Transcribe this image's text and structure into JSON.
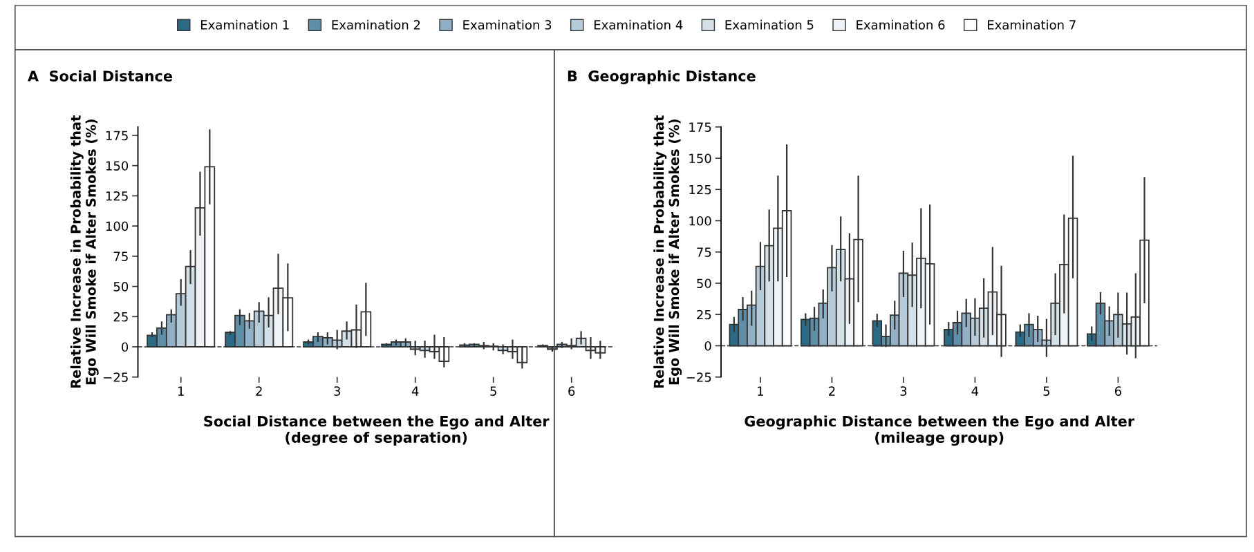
{
  "chart_data": [
    {
      "type": "bar",
      "title": "A  Social Distance",
      "xlabel": "Social Distance between the Ego and Alter\n(degree of separation)",
      "ylabel": "Relative Increase in Probability that\nEgo Will Smoke if Alter Smokes (%)",
      "categories": [
        "1",
        "2",
        "3",
        "4",
        "5",
        "6"
      ],
      "ylim": [
        -25,
        182
      ],
      "yticks": [
        {
          "value": -25,
          "label": "−25"
        },
        0,
        25,
        50,
        75,
        100,
        125,
        150,
        175
      ],
      "legend": "top",
      "grid": false,
      "ref_lines": [
        {
          "axis": "y",
          "value": 0,
          "line_style": "dashed",
          "color": "#333333"
        }
      ],
      "series": [
        {
          "name": "Examination 1",
          "color": "#2b6a84",
          "values": [
            9.5,
            12,
            4,
            2,
            1.5,
            1
          ],
          "errors": [
            [
              8,
              12
            ],
            [
              10,
              13
            ],
            [
              2,
              6
            ],
            [
              0,
              3
            ],
            [
              0,
              3
            ],
            [
              0,
              2
            ]
          ]
        },
        {
          "name": "Examination 2",
          "color": "#5f8fa8",
          "values": [
            15.5,
            26,
            8.5,
            4,
            2,
            -2
          ],
          "errors": [
            [
              10,
              21
            ],
            [
              18,
              31
            ],
            [
              4,
              12
            ],
            [
              1,
              6
            ],
            [
              0,
              3
            ],
            [
              -4,
              0
            ]
          ]
        },
        {
          "name": "Examination 3",
          "color": "#8fb0c6",
          "values": [
            26.5,
            21.5,
            7.5,
            4,
            1,
            2
          ],
          "errors": [
            [
              20,
              31
            ],
            [
              15,
              28
            ],
            [
              2,
              12
            ],
            [
              0,
              7
            ],
            [
              -2,
              4
            ],
            [
              -1,
              4
            ]
          ]
        },
        {
          "name": "Examination 4",
          "color": "#b6ccda",
          "values": [
            44,
            29.5,
            5.5,
            -2,
            0.5,
            1
          ],
          "errors": [
            [
              34,
              56
            ],
            [
              20,
              37
            ],
            [
              -2,
              14
            ],
            [
              -7,
              5
            ],
            [
              -3,
              3
            ],
            [
              -2,
              7
            ]
          ]
        },
        {
          "name": "Examination 5",
          "color": "#d3e0e8",
          "values": [
            66.5,
            26,
            13,
            -3,
            -3,
            7
          ],
          "errors": [
            [
              52,
              80
            ],
            [
              16,
              41
            ],
            [
              6,
              21
            ],
            [
              -9,
              5
            ],
            [
              -6,
              2
            ],
            [
              2,
              13
            ]
          ]
        },
        {
          "name": "Examination 6",
          "color": "#eef3f7",
          "values": [
            115,
            48.5,
            14,
            -4,
            -4,
            -3
          ],
          "errors": [
            [
              92,
              145
            ],
            [
              27,
              77
            ],
            [
              -1,
              35
            ],
            [
              -10,
              10
            ],
            [
              -10,
              6
            ],
            [
              -10,
              8
            ]
          ]
        },
        {
          "name": "Examination 7",
          "color": "#ffffff",
          "values": [
            149,
            40.5,
            29,
            -12,
            -13,
            -5
          ],
          "errors": [
            [
              118,
              180
            ],
            [
              13,
              69
            ],
            [
              9,
              53
            ],
            [
              -17,
              8
            ],
            [
              -18,
              0
            ],
            [
              -10,
              5
            ]
          ]
        }
      ]
    },
    {
      "type": "bar",
      "title": "B  Geographic Distance",
      "xlabel": "Geographic Distance between the Ego and Alter\n(mileage group)",
      "ylabel": "Relative Increase in Probability that\nEgo Will Smoke if Alter Smokes (%)",
      "categories": [
        "1",
        "2",
        "3",
        "4",
        "5",
        "6"
      ],
      "ylim": [
        -25,
        175
      ],
      "yticks": [
        {
          "value": -25,
          "label": "−25"
        },
        0,
        25,
        50,
        75,
        100,
        125,
        150,
        175
      ],
      "grid": false,
      "ref_lines": [
        {
          "axis": "y",
          "value": 0,
          "line_style": "dashed",
          "color": "#333333"
        }
      ],
      "series": [
        {
          "color": "#2b6a84",
          "values": [
            17,
            21,
            20,
            13,
            11,
            9.5
          ],
          "errors": [
            [
              11,
              23
            ],
            [
              16,
              26
            ],
            [
              15,
              25.5
            ],
            [
              8,
              19
            ],
            [
              7,
              17
            ],
            [
              4,
              15.5
            ]
          ]
        },
        {
          "color": "#5f8fa8",
          "values": [
            29,
            22,
            7.5,
            18.5,
            17,
            34
          ],
          "errors": [
            [
              20,
              39
            ],
            [
              12,
              31
            ],
            [
              -1,
              17
            ],
            [
              9,
              28
            ],
            [
              7,
              26
            ],
            [
              25,
              43
            ]
          ]
        },
        {
          "color": "#8fb0c6",
          "values": [
            32.5,
            34,
            24.5,
            26,
            13,
            20
          ],
          "errors": [
            [
              16,
              44
            ],
            [
              22,
              45
            ],
            [
              13,
              36
            ],
            [
              15,
              37.5
            ],
            [
              3,
              24
            ],
            [
              8,
              31.5
            ]
          ]
        },
        {
          "color": "#b6ccda",
          "values": [
            63.5,
            62.5,
            58,
            22,
            4.5,
            25
          ],
          "errors": [
            [
              44.5,
              83
            ],
            [
              43.5,
              80.5
            ],
            [
              39,
              76
            ],
            [
              8,
              38
            ],
            [
              -9,
              21.5
            ],
            [
              6.5,
              42.5
            ]
          ]
        },
        {
          "color": "#d3e0e8",
          "values": [
            80,
            77,
            56.5,
            30,
            34,
            17.5
          ],
          "errors": [
            [
              51.5,
              109
            ],
            [
              51.5,
              103.5
            ],
            [
              31,
              82.5
            ],
            [
              6.5,
              54
            ],
            [
              8.5,
              58
            ],
            [
              -7,
              42.5
            ]
          ]
        },
        {
          "color": "#eef3f7",
          "values": [
            94,
            53.5,
            70,
            43,
            65,
            23
          ],
          "errors": [
            [
              51.5,
              136
            ],
            [
              17.5,
              90
            ],
            [
              30,
              110
            ],
            [
              8.5,
              79
            ],
            [
              26,
              105
            ],
            [
              -10,
              58
            ]
          ]
        },
        {
          "color": "#ffffff",
          "values": [
            108,
            85,
            65.5,
            25,
            102,
            84.5
          ],
          "errors": [
            [
              55,
              161
            ],
            [
              35,
              136
            ],
            [
              17,
              113
            ],
            [
              -9,
              64
            ],
            [
              54,
              152
            ],
            [
              34,
              135
            ]
          ]
        }
      ]
    }
  ]
}
